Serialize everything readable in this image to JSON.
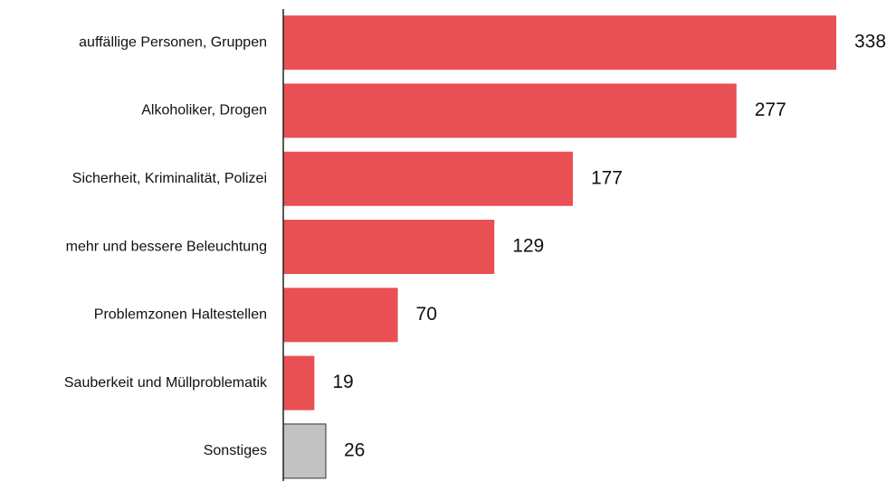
{
  "chart_data": {
    "type": "bar",
    "orientation": "horizontal",
    "categories": [
      "auffällige Personen, Gruppen",
      "Alkoholiker, Drogen",
      "Sicherheit, Kriminalität, Polizei",
      "mehr und bessere Beleuchtung",
      "Problemzonen Haltestellen",
      "Sauberkeit und Müllproblematik",
      "Sonstiges"
    ],
    "values": [
      338,
      277,
      177,
      129,
      70,
      19,
      26
    ],
    "colors": [
      "#e85053",
      "#e85053",
      "#e85053",
      "#e85053",
      "#e85053",
      "#e85053",
      "#c2c2c2"
    ]
  }
}
